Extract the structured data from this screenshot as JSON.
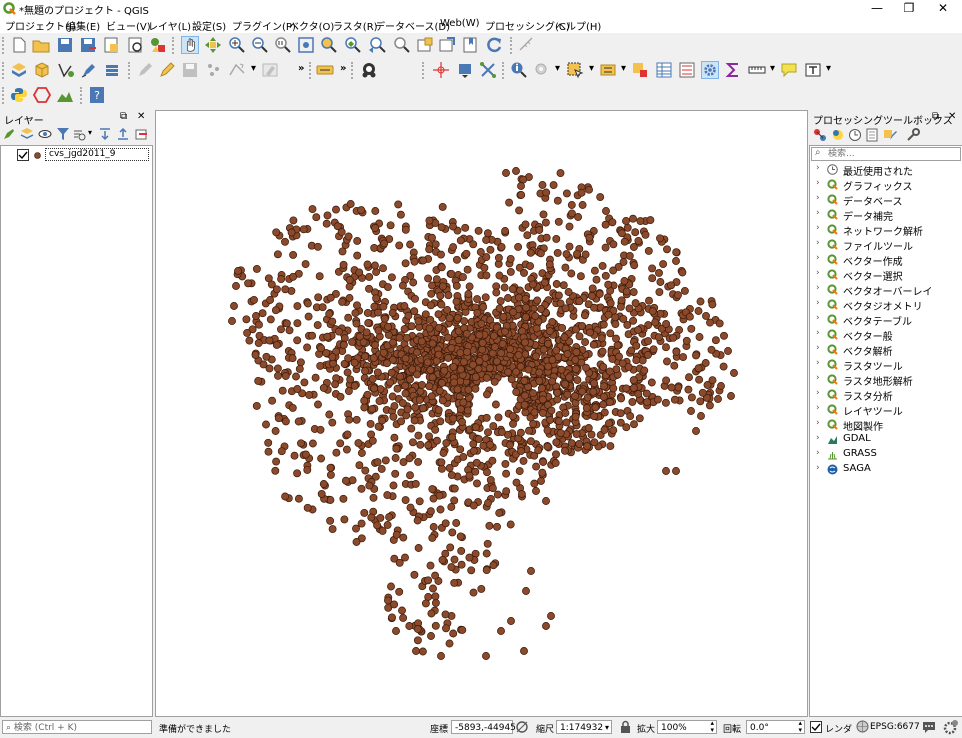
{
  "window": {
    "title": "*無題のプロジェクト - QGIS",
    "controls": {
      "minimize": "—",
      "restore": "❐",
      "close": "✕"
    }
  },
  "menu": [
    "プロジェクト(J)",
    "編集(E)",
    "ビュー(V)",
    "レイヤ(L)",
    "設定(S)",
    "プラグイン(P)",
    "ベクタ(O)",
    "ラスタ(R)",
    "データベース(D)",
    "Web(W)",
    "プロセッシング(C)",
    "ヘルプ(H)"
  ],
  "layers_panel": {
    "title": "レイヤー",
    "layers": [
      {
        "name": "cvs_jgd2011_9",
        "checked": true,
        "symbol_color": "#8b4a2b"
      }
    ]
  },
  "processing_panel": {
    "title": "プロセッシングツールボックス",
    "search_placeholder": "検索...",
    "items": [
      {
        "label": "最近使用された",
        "icon": "clock-icon"
      },
      {
        "label": "グラフィックス",
        "icon": "qgis-icon"
      },
      {
        "label": "データベース",
        "icon": "qgis-icon"
      },
      {
        "label": "データ補完",
        "icon": "qgis-icon"
      },
      {
        "label": "ネットワーク解析",
        "icon": "qgis-icon"
      },
      {
        "label": "ファイルツール",
        "icon": "qgis-icon"
      },
      {
        "label": "ベクター作成",
        "icon": "qgis-icon"
      },
      {
        "label": "ベクター選択",
        "icon": "qgis-icon"
      },
      {
        "label": "ベクタオーバーレイ",
        "icon": "qgis-icon"
      },
      {
        "label": "ベクタジオメトリ",
        "icon": "qgis-icon"
      },
      {
        "label": "ベクタテーブル",
        "icon": "qgis-icon"
      },
      {
        "label": "ベクター般",
        "icon": "qgis-icon"
      },
      {
        "label": "ベクタ解析",
        "icon": "qgis-icon"
      },
      {
        "label": "ラスタツール",
        "icon": "qgis-icon"
      },
      {
        "label": "ラスタ地形解析",
        "icon": "qgis-icon"
      },
      {
        "label": "ラスタ分析",
        "icon": "qgis-icon"
      },
      {
        "label": "レイヤツール",
        "icon": "qgis-icon"
      },
      {
        "label": "地図製作",
        "icon": "qgis-icon"
      },
      {
        "label": "GDAL",
        "icon": "gdal-icon"
      },
      {
        "label": "GRASS",
        "icon": "grass-icon"
      },
      {
        "label": "SAGA",
        "icon": "saga-icon"
      }
    ]
  },
  "statusbar": {
    "locator_placeholder": "検索 (Ctrl + K)",
    "message": "準備ができました",
    "coordinate_label": "座標",
    "coordinate_value": "-5893,-44945",
    "scale_label": "縮尺",
    "scale_value": "1:174932",
    "magnifier_label": "拡大",
    "magnifier_value": "100%",
    "rotation_label": "回転",
    "rotation_value": "0.0°",
    "render_label": "レンダ",
    "crs": "EPSG:6677"
  },
  "colors": {
    "point_fill": "#8b4a2b",
    "point_stroke": "#3a1a0a",
    "qgis_green": "#589632",
    "qgis_yellow": "#ee7913"
  },
  "map": {
    "point_count": 2400
  }
}
